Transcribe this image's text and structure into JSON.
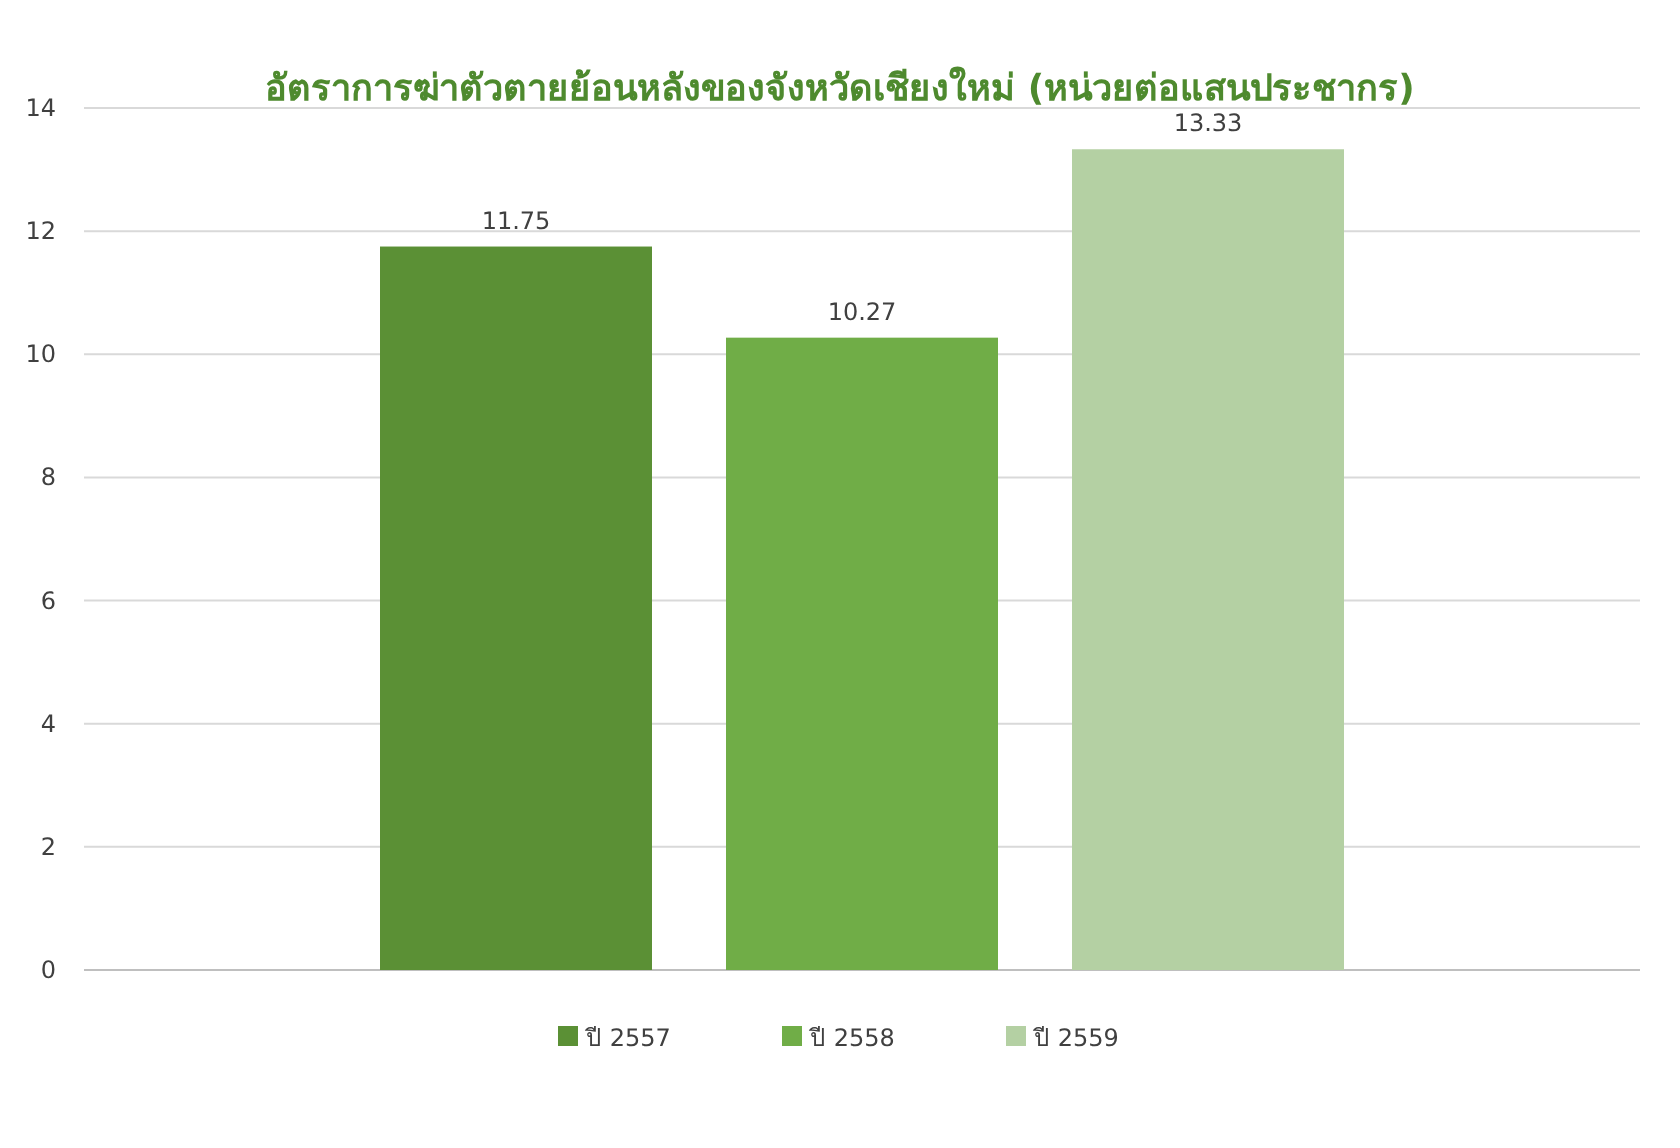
{
  "chart_data": {
    "type": "bar",
    "title": "อัตราการฆ่าตัวตายย้อนหลังของจังหวัดเชียงใหม่ (หน่วยต่อแสนประชากร)",
    "categories": [
      null
    ],
    "series": [
      {
        "name": "ปี 2557",
        "color": "#5b9035",
        "values": [
          11.75
        ]
      },
      {
        "name": "ปี 2558",
        "color": "#70ad47",
        "values": [
          10.27
        ]
      },
      {
        "name": "ปี 2559",
        "color": "#b4d0a3",
        "values": [
          13.33
        ]
      }
    ],
    "ylim": [
      0,
      14
    ],
    "yticks": [
      0,
      2,
      4,
      6,
      8,
      10,
      12,
      14
    ],
    "grid": "y",
    "legend": "bottom",
    "data_labels": true
  }
}
